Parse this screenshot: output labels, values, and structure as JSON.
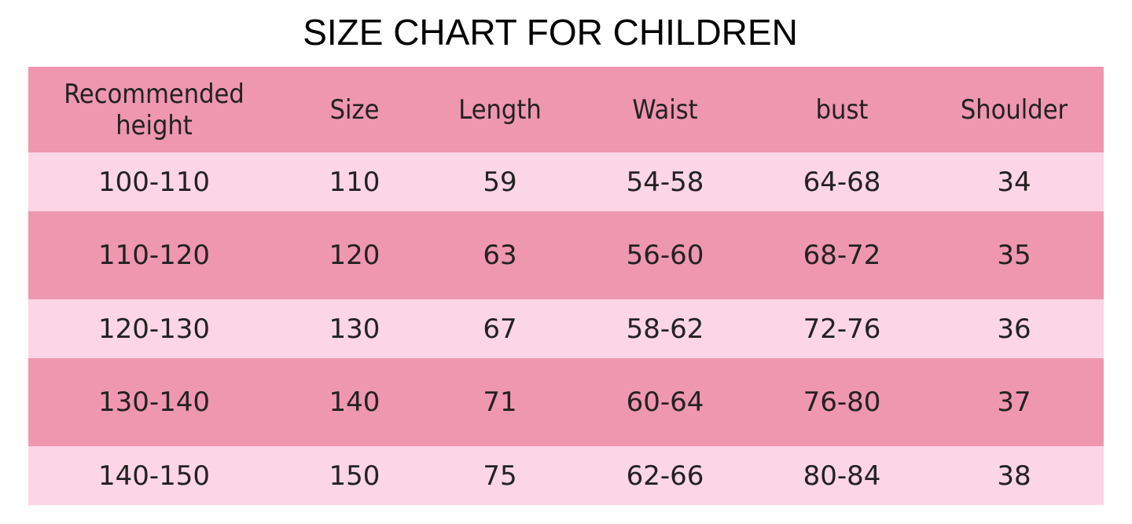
{
  "header": {
    "title": "SIZE CHART FOR CHILDREN"
  },
  "table": {
    "columns": [
      "Recommended height",
      "Size",
      "Length",
      "Waist",
      "bust",
      "Shoulder"
    ],
    "rows": [
      [
        "100-110",
        "110",
        "59",
        "54-58",
        "64-68",
        "34"
      ],
      [
        "110-120",
        "120",
        "63",
        "56-60",
        "68-72",
        "35"
      ],
      [
        "120-130",
        "130",
        "67",
        "58-62",
        "72-76",
        "36"
      ],
      [
        "130-140",
        "140",
        "71",
        "60-64",
        "76-80",
        "37"
      ],
      [
        "140-150",
        "150",
        "75",
        "62-66",
        "80-84",
        "38"
      ]
    ]
  }
}
